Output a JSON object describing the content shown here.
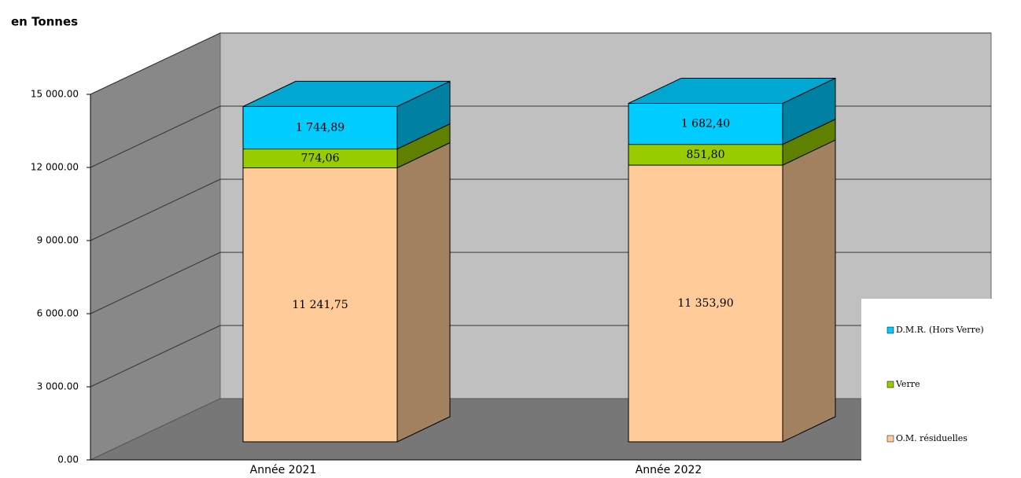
{
  "chart_data": {
    "type": "bar3d_stacked",
    "y_label": "en Tonnes",
    "categories": [
      "Année 2021",
      "Année 2022"
    ],
    "series": [
      {
        "name": "O.M. résiduelles",
        "color": "#ffcc99",
        "values": [
          11241.75,
          11353.9
        ],
        "value_labels": [
          "11 241,75",
          "11 353,90"
        ]
      },
      {
        "name": "Verre",
        "color": "#99cc00",
        "values": [
          774.06,
          851.8
        ],
        "value_labels": [
          "774,06",
          "851,80"
        ]
      },
      {
        "name": "D.M.R. (Hors Verre)",
        "color": "#00ccff",
        "values": [
          1744.89,
          1682.4
        ],
        "value_labels": [
          "1 744,89",
          "1 682,40"
        ]
      }
    ],
    "ylim": [
      0,
      15000
    ],
    "yticks": [
      {
        "value": 0,
        "label": "0.00"
      },
      {
        "value": 3000,
        "label": "3 000.00"
      },
      {
        "value": 6000,
        "label": "6 000.00"
      },
      {
        "value": 9000,
        "label": "9 000.00"
      },
      {
        "value": 12000,
        "label": "12 000.00"
      },
      {
        "value": 15000,
        "label": "15 000.00"
      }
    ],
    "grid": true,
    "legend": "right"
  }
}
